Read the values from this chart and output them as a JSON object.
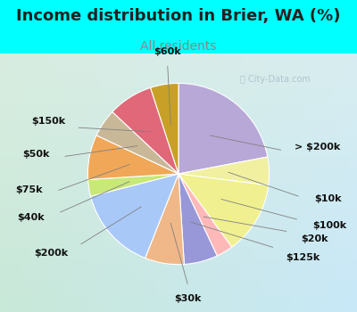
{
  "title": "Income distribution in Brier, WA (%)",
  "subtitle": "All residents",
  "title_color": "#222222",
  "subtitle_color": "#888888",
  "bg_top_color": "#00FFFF",
  "bg_chart_color_tl": "#d8ede0",
  "bg_chart_color_br": "#c8e8f8",
  "watermark": "ⓘ City-Data.com",
  "watermark_color": "#aabbc8",
  "labels": [
    "> $200k",
    "$10k",
    "$100k",
    "$20k",
    "$125k",
    "$30k",
    "$200k",
    "$40k",
    "$75k",
    "$50k",
    "$150k",
    "$60k"
  ],
  "values": [
    22,
    5,
    13,
    3,
    6,
    7,
    15,
    3,
    8,
    5,
    8,
    5
  ],
  "colors": [
    "#b8a8d8",
    "#f0f0a0",
    "#f0f090",
    "#ffb8b8",
    "#9898d8",
    "#f0b888",
    "#a8c8f8",
    "#c8e878",
    "#f0a858",
    "#c8b898",
    "#e06878",
    "#c8a028"
  ],
  "startangle": 90,
  "label_fontsize": 8,
  "title_fontsize": 13,
  "subtitle_fontsize": 10
}
